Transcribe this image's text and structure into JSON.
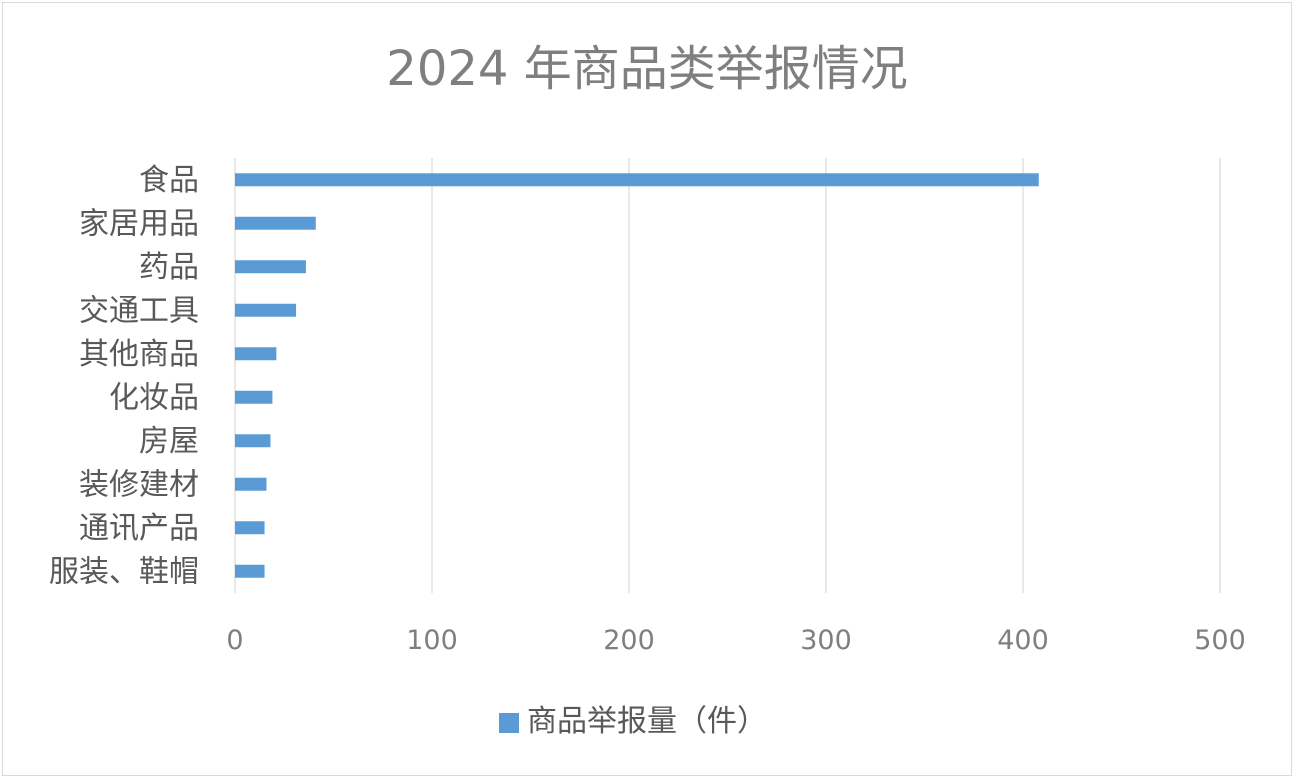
{
  "chart_data": {
    "type": "bar",
    "orientation": "horizontal",
    "title": "2024 年商品类举报情况",
    "categories": [
      "食品",
      "家居用品",
      "药品",
      "交通工具",
      "其他商品",
      "化妆品",
      "房屋",
      "装修建材",
      "通讯产品",
      "服装、鞋帽"
    ],
    "series": [
      {
        "name": "商品举报量（件）",
        "values": [
          408,
          41,
          36,
          31,
          21,
          19,
          18,
          16,
          15,
          15
        ],
        "color": "#5b9bd5"
      }
    ],
    "xlim": [
      0,
      500
    ],
    "xticks": [
      "0",
      "100",
      "200",
      "300",
      "400",
      "500"
    ],
    "grid": "vertical",
    "legend": "bottom"
  }
}
